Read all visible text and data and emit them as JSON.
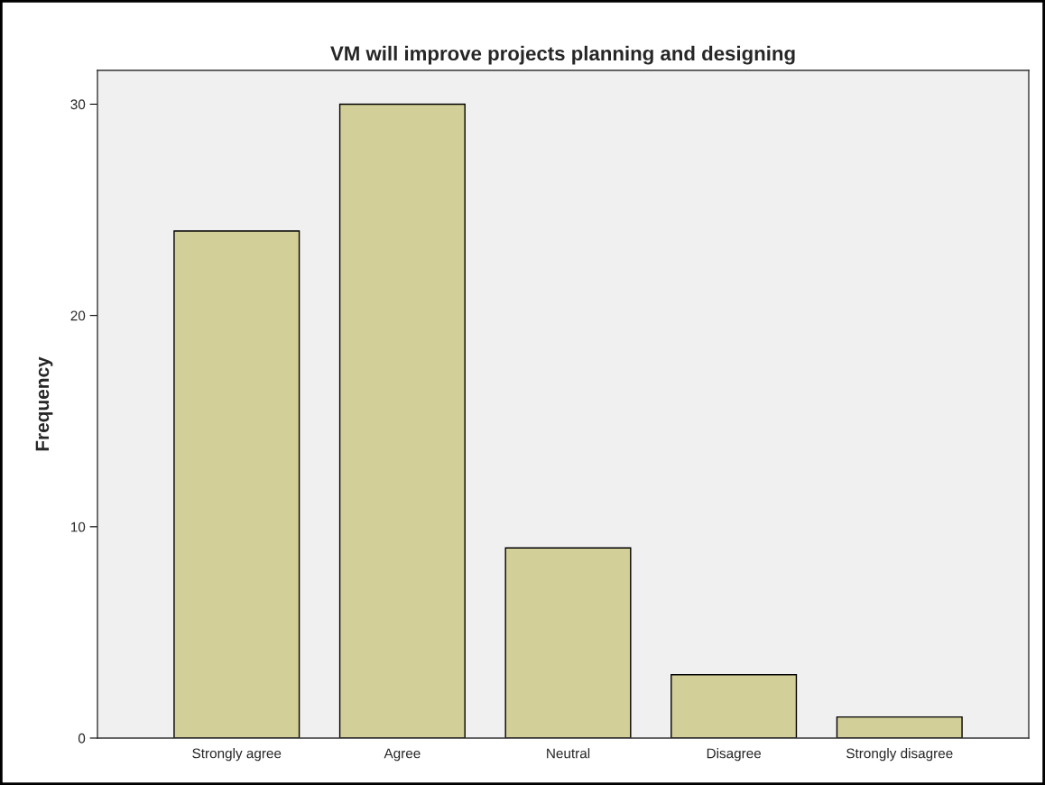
{
  "chart_data": {
    "type": "bar",
    "title": "VM will improve projects planning and designing",
    "ylabel": "Frequency",
    "categories": [
      "Strongly agree",
      "Agree",
      "Neutral",
      "Disagree",
      "Strongly disagree"
    ],
    "values": [
      24,
      30,
      9,
      3,
      1
    ],
    "color": "#d3cf98",
    "ylim": [
      0,
      31.6
    ],
    "yticks": [
      0,
      10,
      20,
      30
    ],
    "grid": false,
    "legend": false
  }
}
